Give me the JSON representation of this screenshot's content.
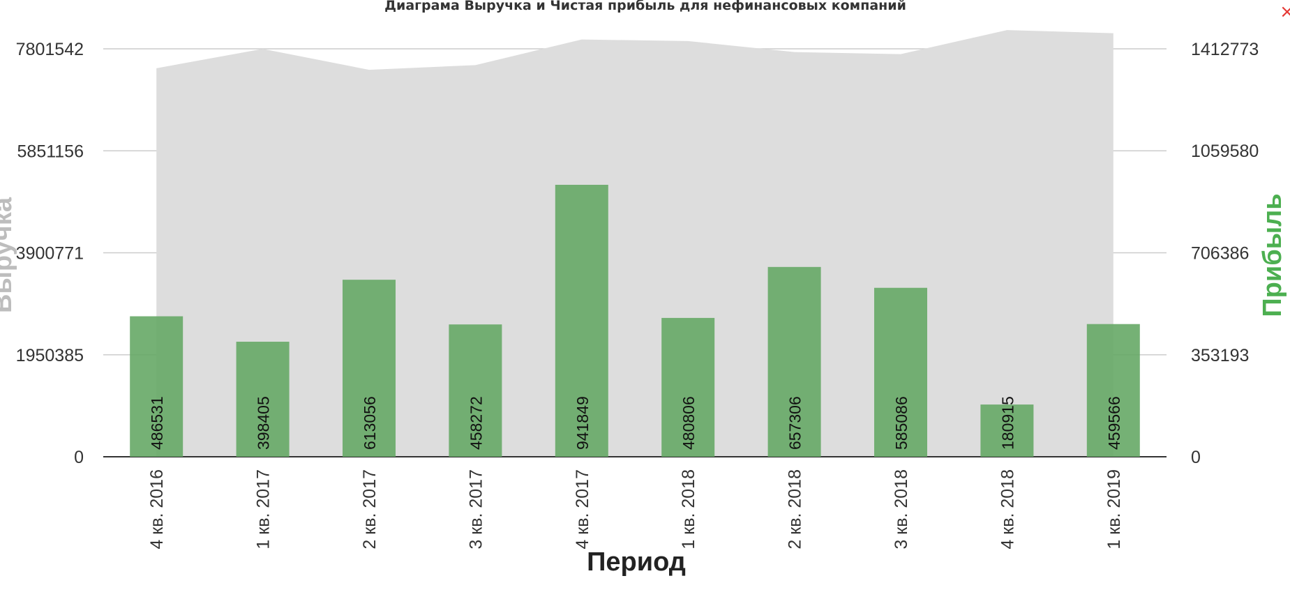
{
  "close_label": "×",
  "chart_data": {
    "type": "bar",
    "title": "Диаграма Выручка и Чистая прибыль для нефинансовых компаний",
    "xlabel": "Период",
    "ylabel_left": "Выручка",
    "ylabel_right": "Прибыль",
    "categories": [
      "4 кв. 2016",
      "1 кв. 2017",
      "2 кв. 2017",
      "3 кв. 2017",
      "4 кв. 2017",
      "1 кв. 2018",
      "2 кв. 2018",
      "3 кв. 2018",
      "4 кв. 2018",
      "1 кв. 2019"
    ],
    "left_axis": {
      "ticks": [
        0,
        1950385,
        3900771,
        5851156,
        7801542
      ],
      "tick_labels": [
        "0",
        "1950385",
        "3900771",
        "5851156",
        "7801542"
      ],
      "ylim": [
        0,
        7801542
      ]
    },
    "right_axis": {
      "ticks": [
        0,
        353193,
        706386,
        1059580,
        1412773
      ],
      "tick_labels": [
        "0",
        "353193",
        "706386",
        "1059580",
        "1412773"
      ],
      "ylim": [
        0,
        1412773
      ]
    },
    "series": [
      {
        "name": "Выручка",
        "type": "area",
        "axis": "left",
        "values": [
          7430000,
          7800000,
          7400000,
          7490000,
          7980000,
          7950000,
          7740000,
          7700000,
          8160000,
          8100000
        ]
      },
      {
        "name": "Прибыль",
        "type": "bar",
        "axis": "right",
        "values": [
          486531,
          398405,
          613056,
          458272,
          941849,
          480806,
          657306,
          585086,
          180915,
          459566
        ],
        "labels": [
          "486531",
          "398405",
          "613056",
          "458272",
          "941849",
          "480806",
          "657306",
          "585086",
          "180915",
          "459566"
        ]
      }
    ],
    "grid": true,
    "colors": {
      "area": "#dddddd",
      "bar": "#66a866",
      "grid": "#cccccc",
      "axis_line": "#333333",
      "left_label": "#bdbdbd",
      "right_label": "#4caf50",
      "title": "#333333",
      "tick_text": "#333333",
      "close": "#e53935"
    }
  }
}
